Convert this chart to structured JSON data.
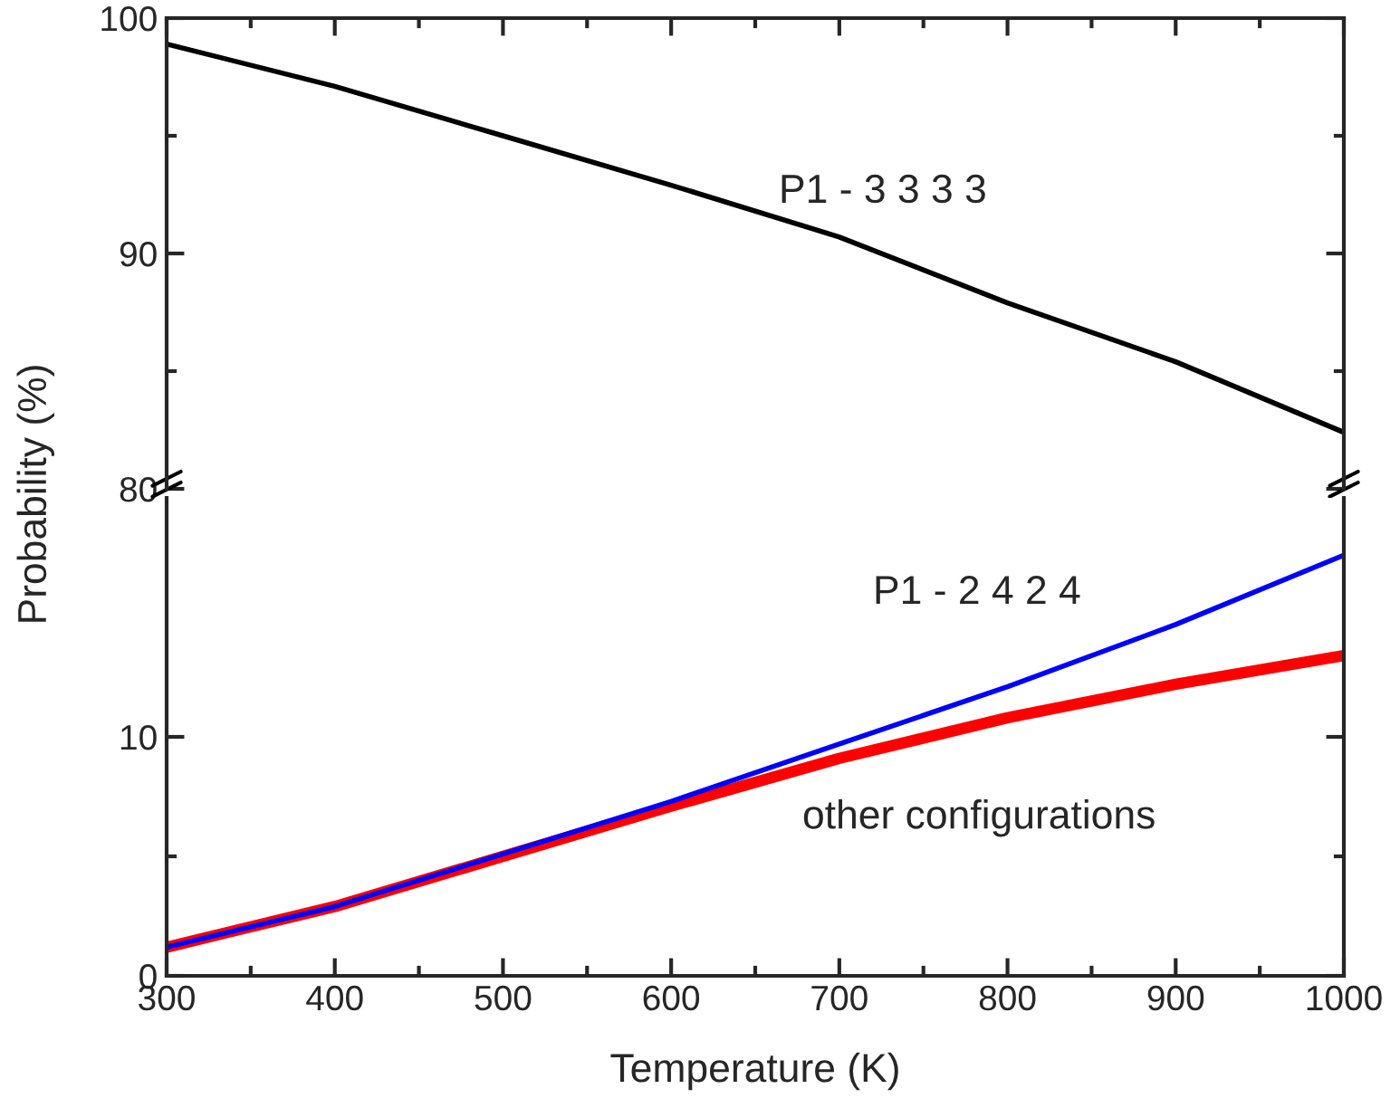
{
  "chart_data": [
    {
      "type": "line",
      "ylabel": "Probability (%)",
      "x": [
        300,
        400,
        500,
        600,
        700,
        800,
        900,
        1000
      ],
      "series": [
        {
          "color": "#000000",
          "values": [
            98.9,
            97.1,
            95.0,
            92.9,
            90.7,
            87.9,
            85.4,
            82.4
          ]
        }
      ],
      "xlim": [
        300,
        1000
      ],
      "xticks": [
        300,
        400,
        500,
        600,
        700,
        800,
        900,
        1000
      ],
      "ylim": [
        80,
        100
      ],
      "yticks": [
        80,
        90,
        100
      ],
      "tick_labels": "y",
      "grid": false,
      "legend": false,
      "annotations": [
        "P1 - 3 3 3 3"
      ]
    },
    {
      "type": "line",
      "xlabel": "Temperature (K)",
      "x": [
        300,
        400,
        500,
        600,
        700,
        800,
        900,
        1000
      ],
      "series": [
        {
          "color": "#ff0000",
          "values": [
            1.2,
            2.9,
            5.0,
            7.1,
            9.1,
            10.8,
            12.2,
            13.4
          ]
        },
        {
          "color": "#0000ff",
          "values": [
            1.2,
            2.9,
            5.1,
            7.3,
            9.7,
            12.1,
            14.7,
            17.6
          ]
        }
      ],
      "xlim": [
        300,
        1000
      ],
      "xticks": [
        300,
        400,
        500,
        600,
        700,
        800,
        900,
        1000
      ],
      "ylim": [
        0,
        20
      ],
      "yticks": [
        0,
        10
      ],
      "grid": false,
      "legend": false,
      "annotations": [
        "P1 - 2 4 2 4",
        "other configurations"
      ]
    }
  ]
}
